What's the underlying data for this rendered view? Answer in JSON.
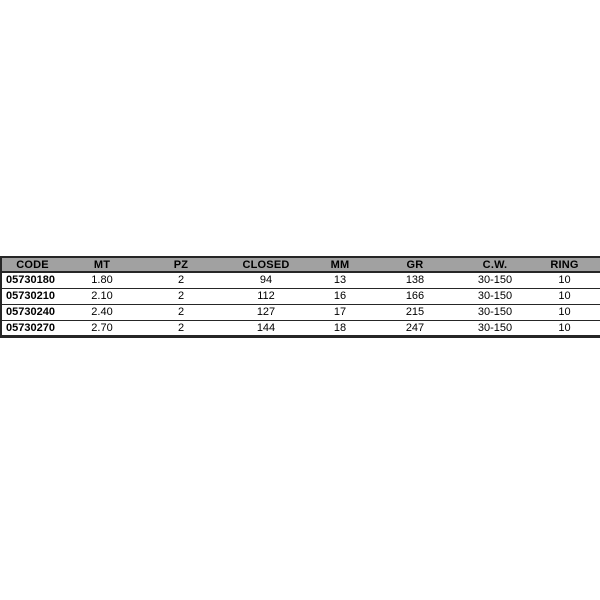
{
  "page": {
    "background": "#ffffff"
  },
  "table": {
    "columns": [
      "CODE",
      "MT",
      "PZ",
      "CLOSED",
      "MM",
      "GR",
      "C.W.",
      "RING"
    ],
    "rows": [
      [
        "05730180",
        "1.80",
        "2",
        "94",
        "13",
        "138",
        "30-150",
        "10"
      ],
      [
        "05730210",
        "2.10",
        "2",
        "112",
        "16",
        "166",
        "30-150",
        "10"
      ],
      [
        "05730240",
        "2.40",
        "2",
        "127",
        "17",
        "215",
        "30-150",
        "10"
      ],
      [
        "05730270",
        "2.70",
        "2",
        "144",
        "18",
        "247",
        "30-150",
        "10"
      ]
    ],
    "colors": {
      "header_bg": "#a1a1a1",
      "border": "#262626",
      "text": "#000000",
      "row_bg": "#ffffff"
    }
  }
}
